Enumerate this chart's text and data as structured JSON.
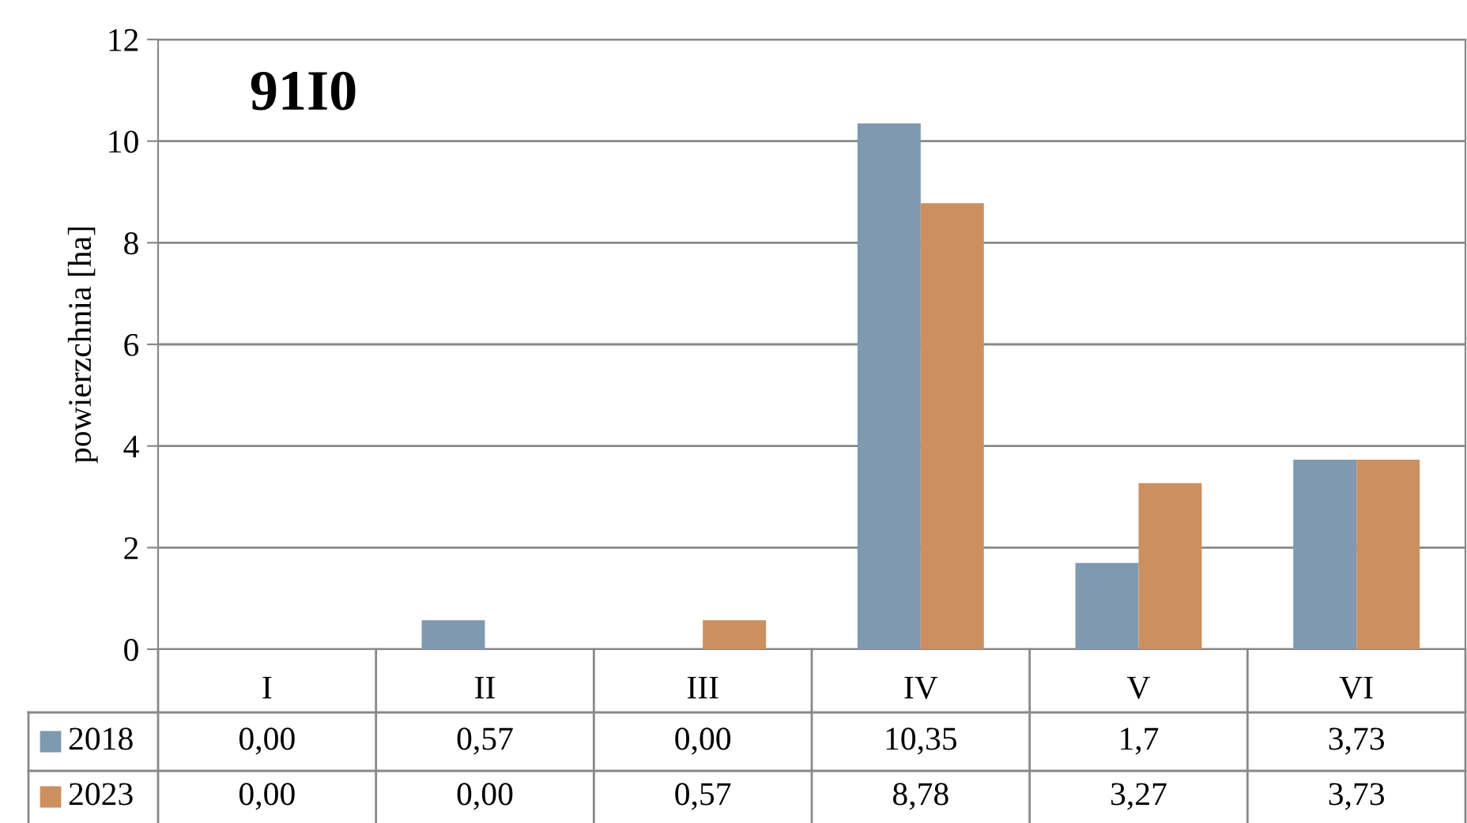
{
  "chart_data": {
    "type": "bar",
    "title": "91I0",
    "ylabel": "powierzchnia [ha]",
    "categories": [
      "I",
      "II",
      "III",
      "IV",
      "V",
      "VI"
    ],
    "series": [
      {
        "name": "2018",
        "color": "#7f99b0",
        "values": [
          0.0,
          0.57,
          0.0,
          10.35,
          1.7,
          3.73
        ],
        "value_labels": [
          "0,00",
          "0,57",
          "0,00",
          "10,35",
          "1,7",
          "3,73"
        ]
      },
      {
        "name": "2023",
        "color": "#cc8f60",
        "values": [
          0.0,
          0.0,
          0.57,
          8.78,
          3.27,
          3.73
        ],
        "value_labels": [
          "0,00",
          "0,00",
          "0,57",
          "8,78",
          "3,27",
          "3,73"
        ]
      }
    ],
    "ylim": [
      0,
      12
    ],
    "yticks": [
      0,
      2,
      4,
      6,
      8,
      10,
      12
    ],
    "grid": "y",
    "legend": "bottom left"
  }
}
